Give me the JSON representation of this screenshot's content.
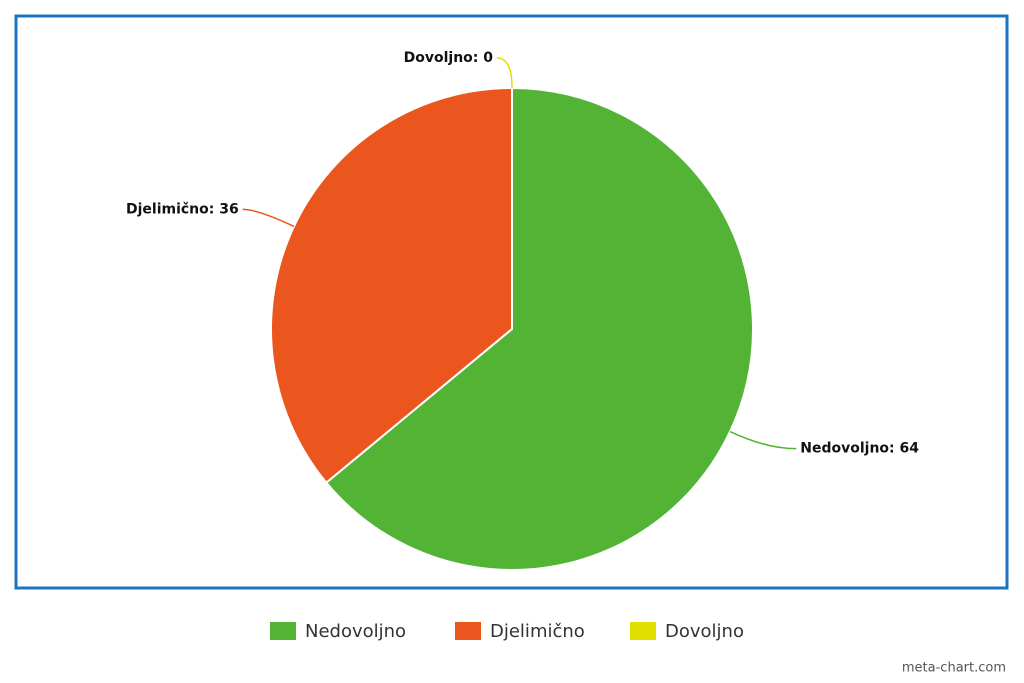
{
  "chart_data": {
    "type": "pie",
    "categories": [
      "Nedovoljno",
      "Djelimično",
      "Dovoljno"
    ],
    "values": [
      64,
      36,
      0
    ],
    "value_labels": [
      "Nedovoljno: 64",
      "Djelimično: 36",
      "Dovoljno: 0"
    ],
    "colors": [
      "#52b335",
      "#ea561d",
      "#dfe000"
    ],
    "legend": "bottom",
    "credit": "meta-chart.com"
  }
}
